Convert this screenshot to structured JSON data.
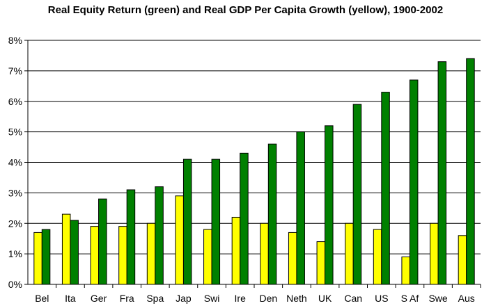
{
  "chart_data": {
    "type": "bar",
    "title": "Real Equity Return (green) and Real GDP Per Capita Growth (yellow), 1900-2002",
    "categories": [
      "Bel",
      "Ita",
      "Ger",
      "Fra",
      "Spa",
      "Jap",
      "Swi",
      "Ire",
      "Den",
      "Neth",
      "UK",
      "Can",
      "US",
      "S Af",
      "Swe",
      "Aus"
    ],
    "series": [
      {
        "color": "#ffff00",
        "values": [
          1.7,
          2.3,
          1.9,
          1.9,
          2.0,
          2.9,
          1.8,
          2.2,
          2.0,
          1.7,
          1.4,
          2.0,
          1.8,
          0.9,
          2.0,
          1.6
        ]
      },
      {
        "color": "#008000",
        "values": [
          1.8,
          2.1,
          2.8,
          3.1,
          3.2,
          4.1,
          4.1,
          4.3,
          4.6,
          5.0,
          5.2,
          5.9,
          6.3,
          6.7,
          7.3,
          7.4
        ]
      }
    ],
    "ylim": [
      0,
      8
    ],
    "yticks": [
      "0%",
      "1%",
      "2%",
      "3%",
      "4%",
      "5%",
      "6%",
      "7%",
      "8%"
    ],
    "grid": true,
    "legend": "none"
  }
}
